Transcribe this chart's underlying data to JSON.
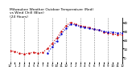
{
  "title": "Milwaukee Weather Outdoor Temperature (Red)\nvs Wind Chill (Blue)\n(24 Hours)",
  "title_fontsize": 3.2,
  "background_color": "#ffffff",
  "grid_color": "#888888",
  "temp_color": "#cc0000",
  "wind_color": "#0000cc",
  "ylim": [
    -5,
    45
  ],
  "xlim": [
    0,
    24
  ],
  "yticks": [
    0,
    10,
    20,
    30,
    40
  ],
  "ytick_fontsize": 3.0,
  "xtick_fontsize": 2.8,
  "temp_x": [
    0,
    1,
    2,
    3,
    4,
    5,
    6,
    7,
    8,
    9,
    10,
    11,
    12,
    13,
    14,
    15,
    16,
    17,
    18,
    19,
    20,
    21,
    22,
    23,
    24
  ],
  "temp_y": [
    8,
    7,
    5,
    4,
    5,
    6,
    5,
    6,
    10,
    16,
    22,
    30,
    36,
    40,
    38,
    36,
    35,
    34,
    32,
    31,
    29,
    28,
    27,
    26,
    26
  ],
  "wind_x": [
    8,
    9,
    10,
    11,
    12,
    13,
    14,
    15,
    16,
    17,
    18,
    19,
    20,
    21,
    22,
    23,
    24
  ],
  "wind_y": [
    5,
    12,
    19,
    27,
    33,
    38,
    37,
    35,
    34,
    33,
    32,
    31,
    30,
    29,
    29,
    28,
    28
  ],
  "vgrid_positions": [
    0,
    3,
    6,
    9,
    12,
    15,
    18,
    21,
    24
  ],
  "xtick_labels": [
    "12",
    "1",
    "2",
    "3",
    "4",
    "5",
    "6",
    "7",
    "8",
    "9",
    "10",
    "11",
    "12",
    "1",
    "2",
    "3",
    "4",
    "5",
    "6",
    "7",
    "8",
    "9",
    "10",
    "11",
    "12"
  ]
}
